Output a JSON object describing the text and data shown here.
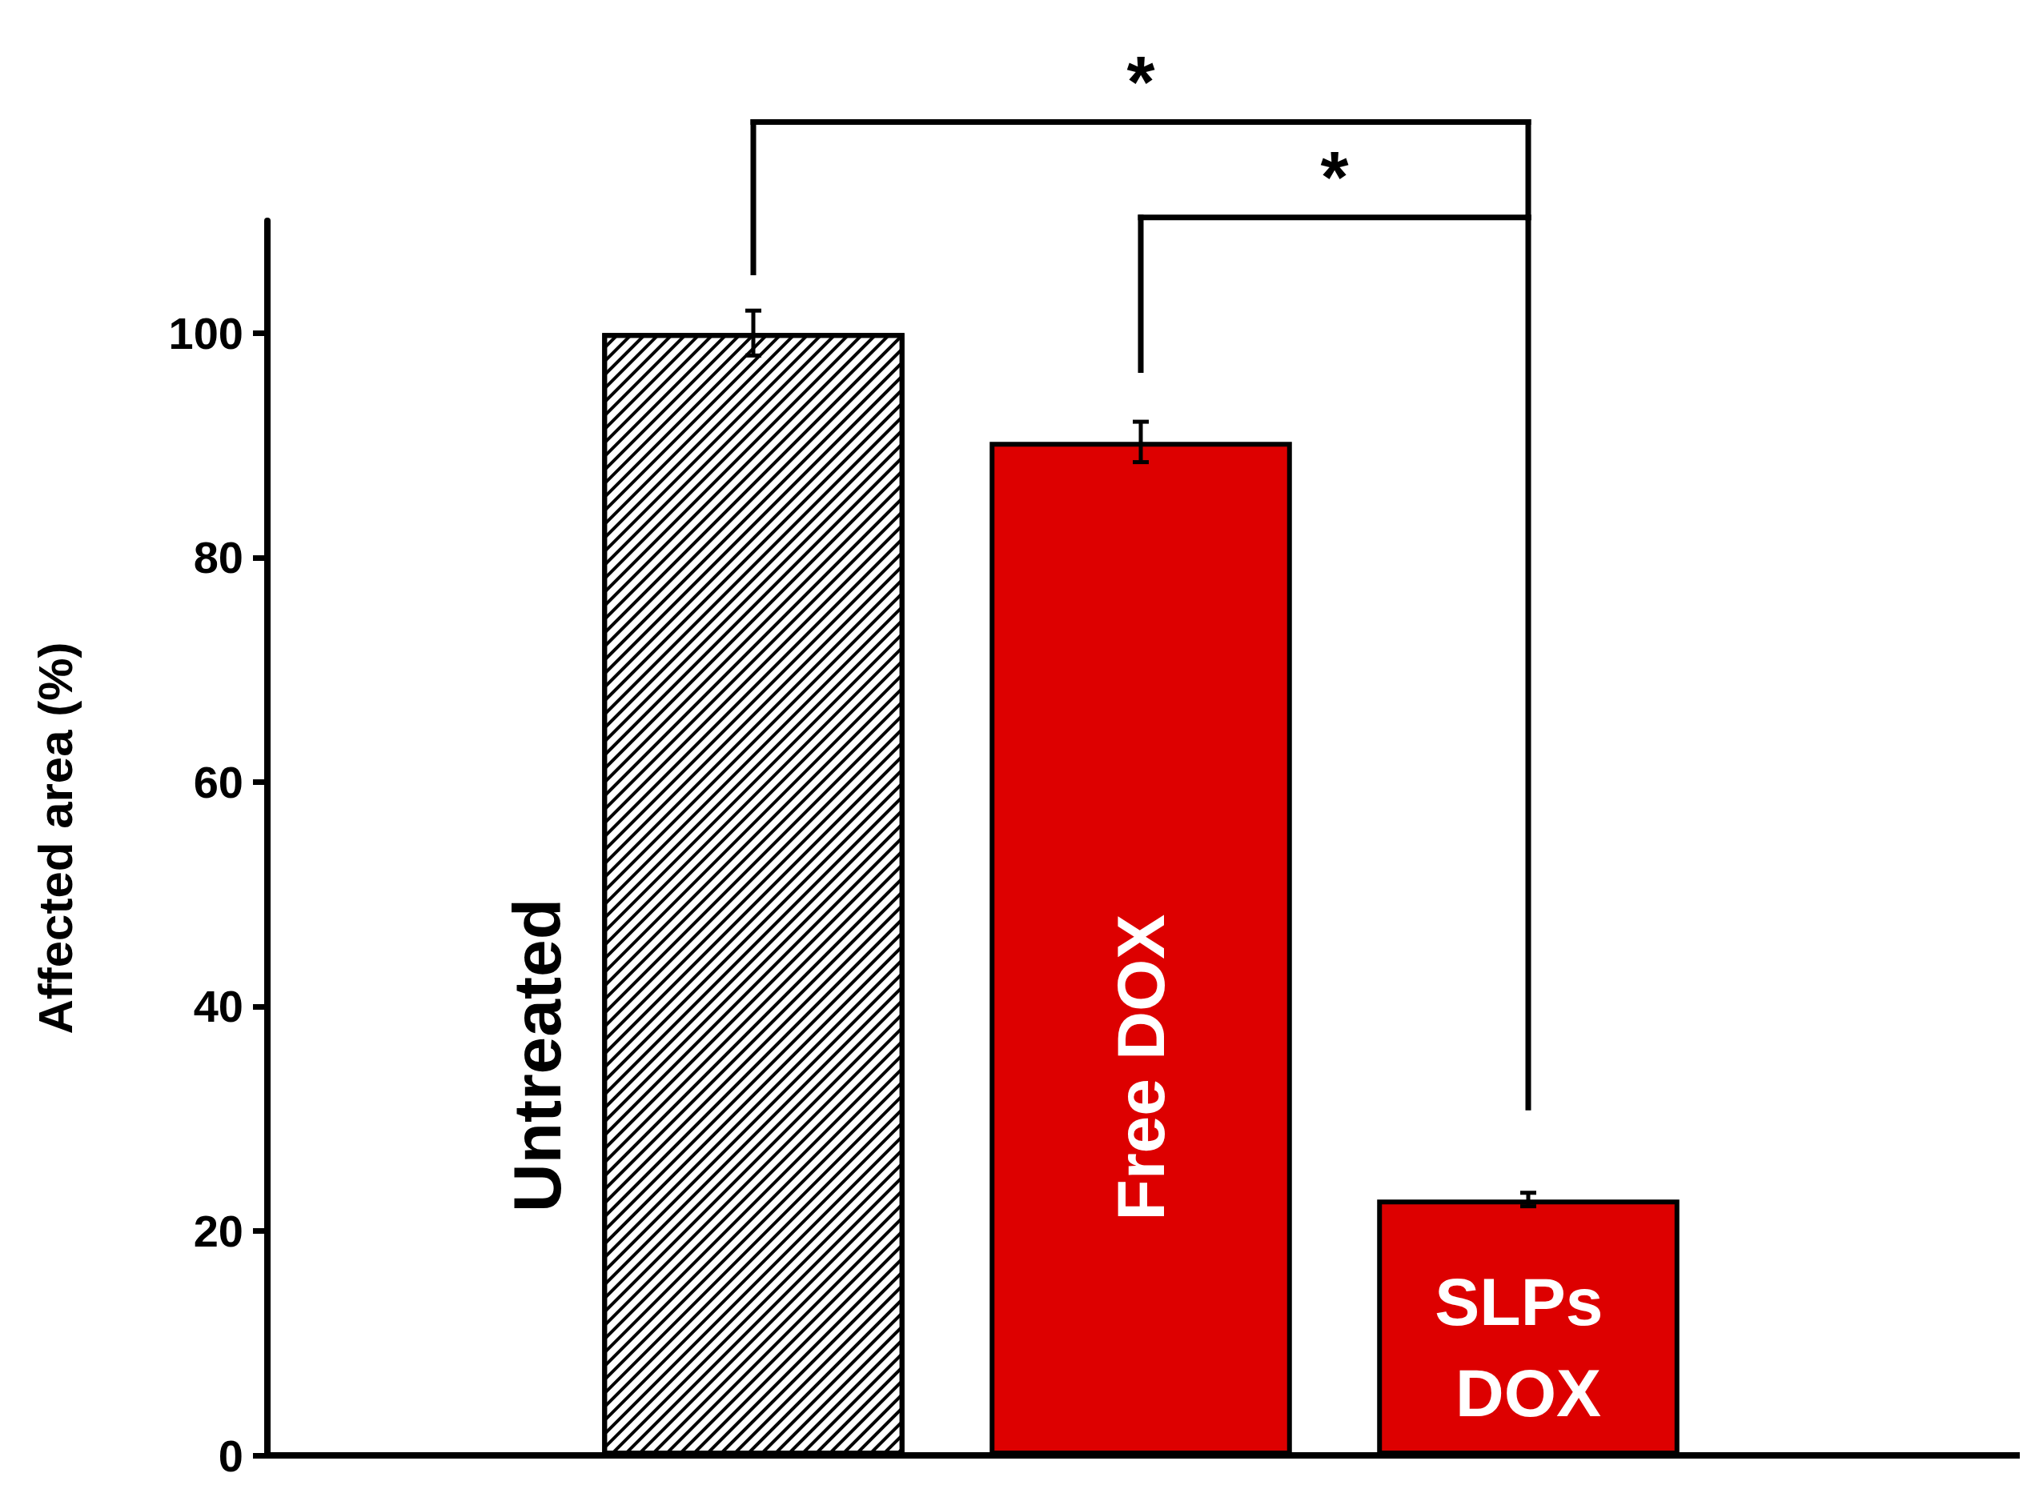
{
  "chart_data": {
    "type": "bar",
    "ylabel": "Affected area (%)",
    "categories": [
      "Untreated",
      "Free DOX",
      "SLPs DOX"
    ],
    "values": [
      100,
      90.3,
      22.8
    ],
    "errors": [
      2,
      1.8,
      0.6
    ],
    "colors": [
      "#ffffff",
      "#dd0000",
      "#dd0000"
    ],
    "ylim": [
      0,
      110
    ],
    "yticks": [
      0,
      20,
      40,
      60,
      80,
      100
    ],
    "annotations": [
      "*",
      "*"
    ]
  }
}
